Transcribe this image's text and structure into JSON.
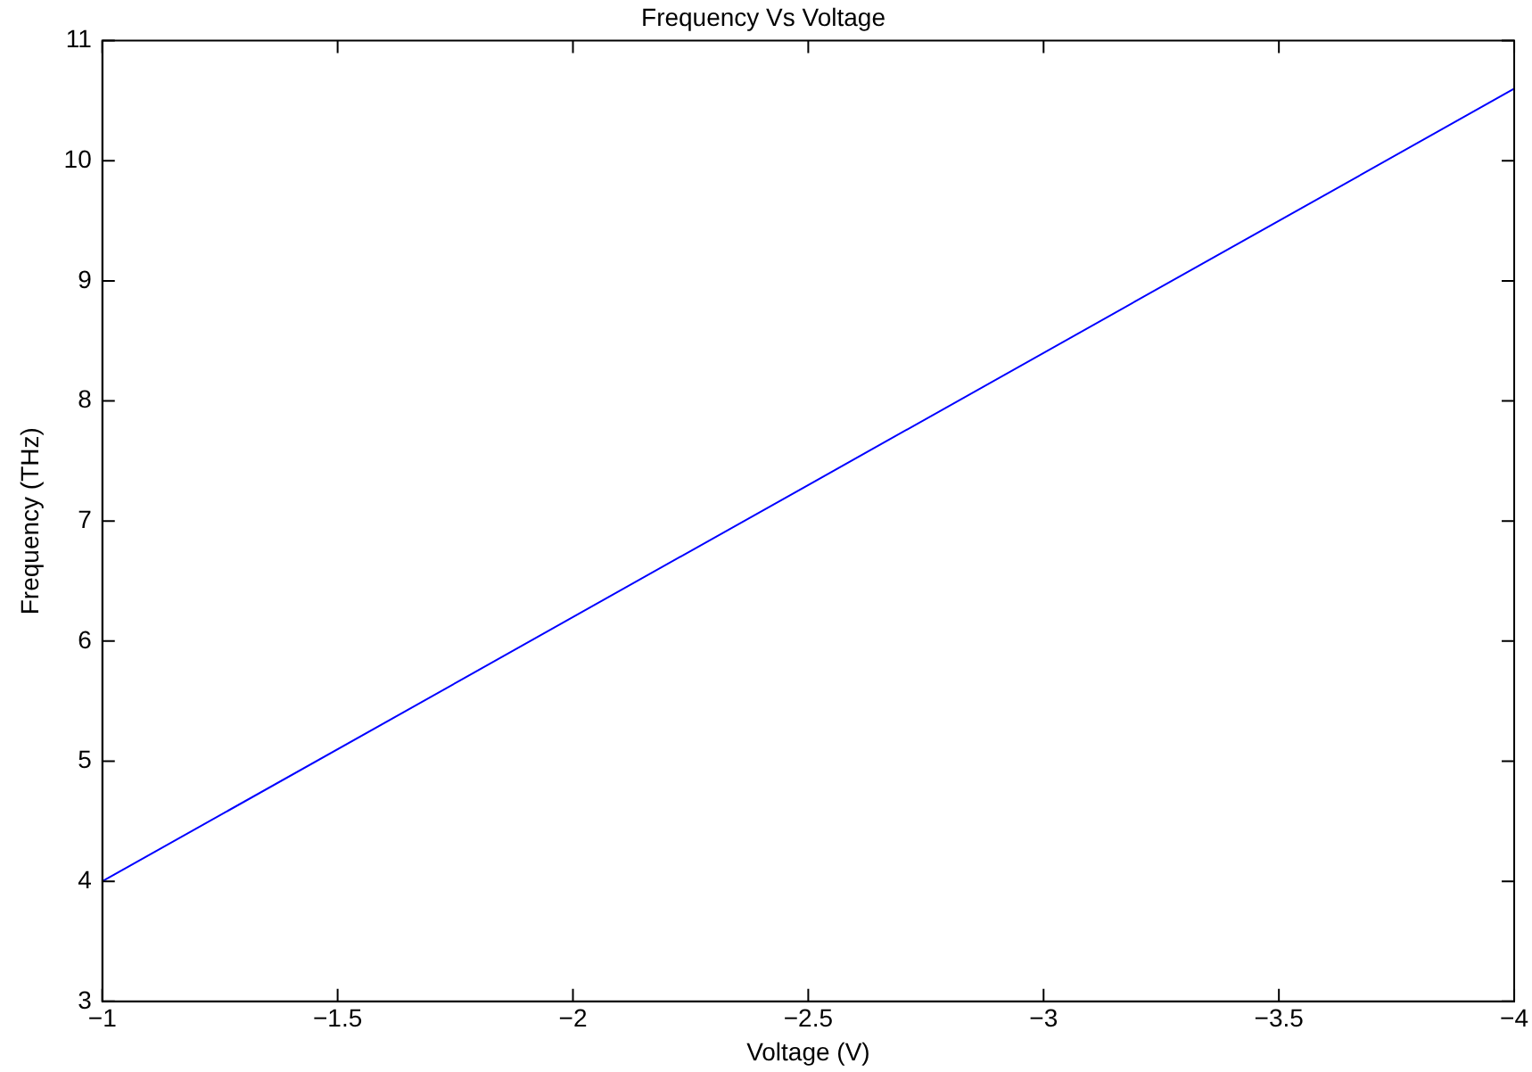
{
  "chart_data": {
    "type": "line",
    "title": "Frequency Vs Voltage",
    "xlabel": "Voltage (V)",
    "ylabel": "Frequency (THz)",
    "x": [
      -1,
      -2.5,
      -4
    ],
    "series": [
      {
        "color": "#0000ff",
        "values": [
          4.0,
          7.3,
          10.6
        ]
      }
    ],
    "xlim": [
      -1,
      -4
    ],
    "xticks": [
      {
        "value": -1,
        "label": "−1"
      },
      {
        "value": -1.5,
        "label": "−1.5"
      },
      {
        "value": -2,
        "label": "−2"
      },
      {
        "value": -2.5,
        "label": "−2.5"
      },
      {
        "value": -3,
        "label": "−3"
      },
      {
        "value": -3.5,
        "label": "−3.5"
      },
      {
        "value": -4,
        "label": "−4"
      }
    ],
    "ylim": [
      3,
      11
    ],
    "yticks": [
      3,
      4,
      5,
      6,
      7,
      8,
      9,
      10,
      11
    ],
    "grid": false,
    "legend": false,
    "marker": "none",
    "line_style": "solid"
  }
}
